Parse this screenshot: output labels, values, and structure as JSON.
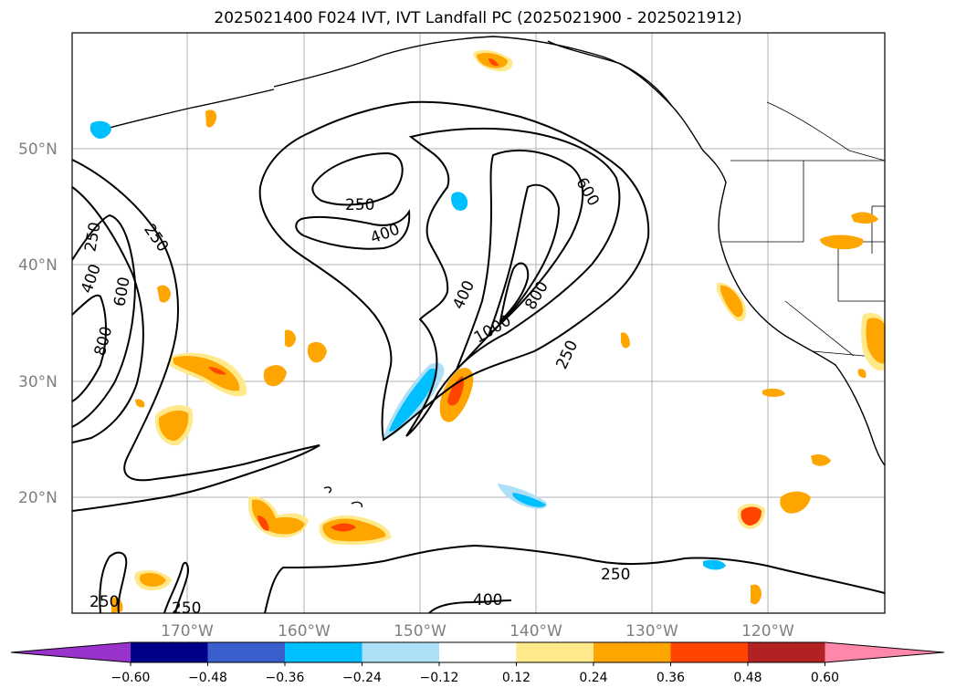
{
  "title": "2025021400 F024 IVT, IVT Landfall PC (2025021900 - 2025021912)",
  "map": {
    "lat_labels": [
      "50°N",
      "40°N",
      "30°N",
      "20°N"
    ],
    "lon_labels": [
      "170°W",
      "160°W",
      "150°W",
      "140°W",
      "130°W",
      "120°W"
    ],
    "contour_labels": [
      "250",
      "400",
      "250",
      "400",
      "600",
      "250",
      "400",
      "600",
      "800",
      "400",
      "800",
      "1000",
      "250",
      "250",
      "250",
      "400",
      "250"
    ]
  },
  "colorbar": {
    "ticks": [
      "−0.60",
      "−0.48",
      "−0.36",
      "−0.24",
      "−0.12",
      "0.12",
      "0.24",
      "0.36",
      "0.48",
      "0.60"
    ],
    "colors": [
      "#9933cc",
      "#00008b",
      "#3a5fcd",
      "#00bfff",
      "#ade0f7",
      "#ffffff",
      "#ffe98a",
      "#ffa500",
      "#ff4500",
      "#b22222",
      "#ff88aa"
    ]
  }
}
